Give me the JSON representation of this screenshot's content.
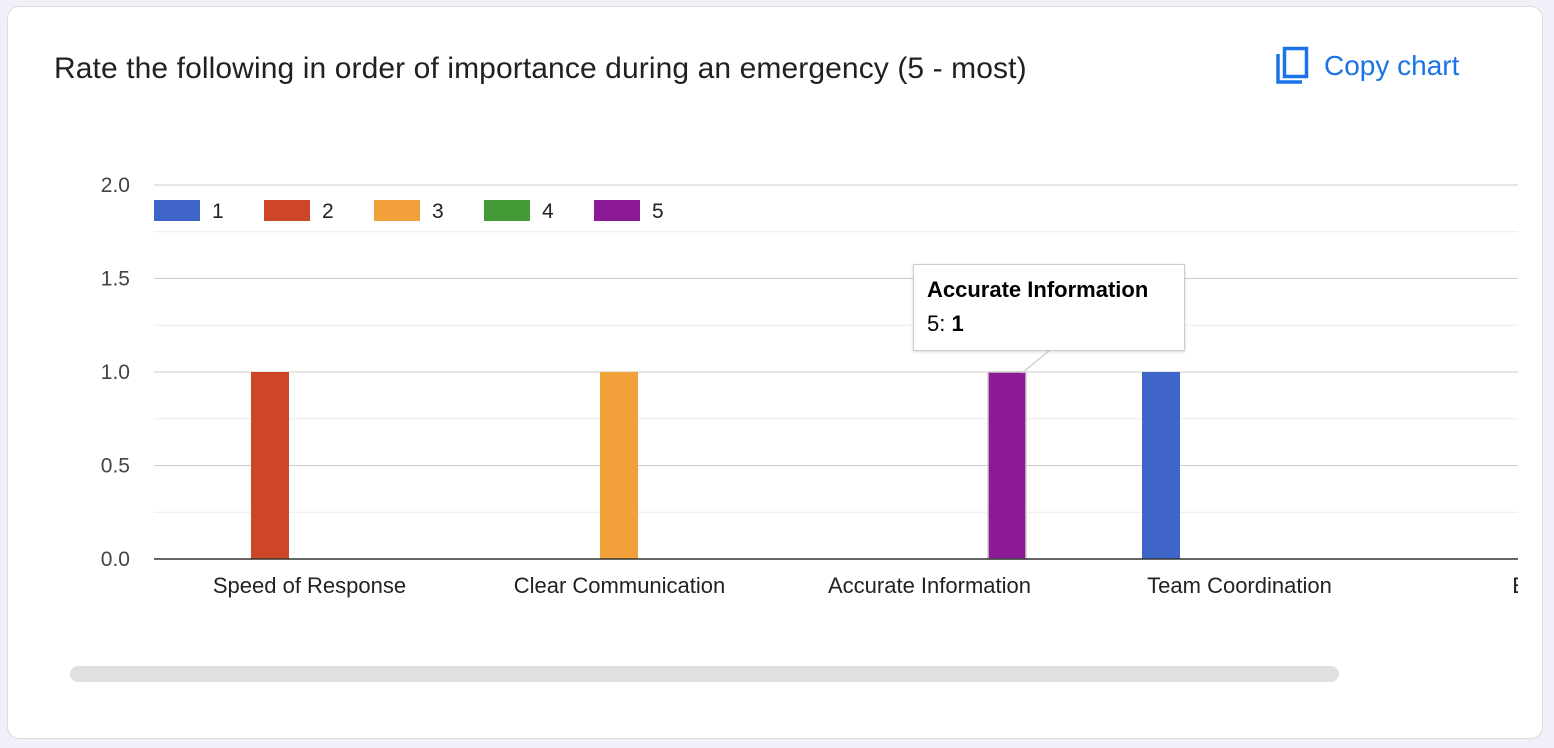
{
  "title": "Rate the following in order of importance during an emergency (5 - most)",
  "copy_label": "Copy chart",
  "copy_icon": "copy-icon",
  "colors": {
    "accent": "#1a73e8",
    "s1": "#3f65c8",
    "s2": "#cd4628",
    "s3": "#f2a13a",
    "s4": "#439a36",
    "s5": "#8b1a94"
  },
  "chart_data": {
    "type": "bar",
    "categories": [
      "Speed of Response",
      "Clear Communication",
      "Accurate Information",
      "Team Coordination",
      "Equipm"
    ],
    "series": [
      {
        "name": "1",
        "color": "#3f65c8",
        "values": [
          0,
          0,
          0,
          1,
          0
        ]
      },
      {
        "name": "2",
        "color": "#cd4628",
        "values": [
          1,
          0,
          0,
          0,
          0
        ]
      },
      {
        "name": "3",
        "color": "#f2a13a",
        "values": [
          0,
          1,
          0,
          0,
          0
        ]
      },
      {
        "name": "4",
        "color": "#439a36",
        "values": [
          0,
          0,
          0,
          0,
          0
        ]
      },
      {
        "name": "5",
        "color": "#8b1a94",
        "values": [
          0,
          0,
          1,
          0,
          0
        ]
      }
    ],
    "yticks": [
      "0.0",
      "0.5",
      "1.0",
      "1.5",
      "2.0"
    ],
    "ylim": [
      0,
      2
    ],
    "grid": true,
    "legend": "top-left"
  },
  "tooltip": {
    "title": "Accurate Information",
    "series_label": "5: ",
    "value": "1"
  }
}
